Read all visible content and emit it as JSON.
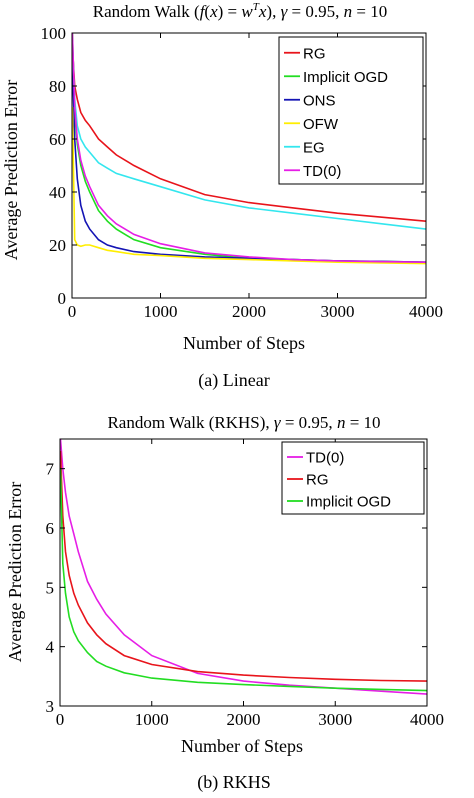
{
  "caption_a": "(a)  Linear",
  "caption_b": "(b)  RKHS",
  "chart_data": [
    {
      "type": "line",
      "title": "Random Walk (f(x) = w^T x), γ = 0.95, n = 10",
      "xlabel": "Number of Steps",
      "ylabel": "Average Prediction Error",
      "xlim": [
        0,
        4000
      ],
      "ylim": [
        0,
        100
      ],
      "xticks": [
        0,
        1000,
        2000,
        3000,
        4000
      ],
      "yticks": [
        0,
        20,
        40,
        60,
        80,
        100
      ],
      "grid": false,
      "legend_position": "top-right",
      "series": [
        {
          "name": "RG",
          "color": "#e8141b",
          "x": [
            5,
            30,
            60,
            100,
            150,
            200,
            300,
            400,
            500,
            700,
            1000,
            1500,
            2000,
            2500,
            3000,
            3500,
            4000
          ],
          "y": [
            95,
            80,
            75,
            70,
            67,
            65,
            60,
            57,
            54,
            50,
            45,
            39,
            36,
            34,
            32,
            30.5,
            29
          ]
        },
        {
          "name": "Implicit OGD",
          "color": "#22dd22",
          "x": [
            5,
            30,
            60,
            100,
            150,
            200,
            300,
            400,
            500,
            700,
            1000,
            1500,
            2000,
            2500,
            3000,
            3500,
            4000
          ],
          "y": [
            100,
            70,
            58,
            50,
            44,
            40,
            33,
            29,
            26,
            22,
            19,
            16.5,
            15,
            14.5,
            14,
            13.8,
            13.5
          ]
        },
        {
          "name": "ONS",
          "color": "#1414b4",
          "x": [
            5,
            30,
            60,
            100,
            150,
            200,
            300,
            400,
            500,
            700,
            1000,
            1500,
            2000,
            2500,
            3000,
            3500,
            4000
          ],
          "y": [
            88,
            60,
            45,
            35,
            29,
            26,
            22,
            20,
            19,
            17.5,
            16.5,
            15.5,
            15,
            14.5,
            14,
            13.8,
            13.5
          ]
        },
        {
          "name": "OFW",
          "color": "#ffee00",
          "x": [
            5,
            30,
            60,
            100,
            150,
            200,
            300,
            400,
            500,
            700,
            1000,
            1500,
            2000,
            2500,
            3000,
            3500,
            4000
          ],
          "y": [
            72,
            22,
            20,
            19.5,
            20,
            20,
            19,
            18,
            17.5,
            16.5,
            16,
            15,
            14.5,
            14,
            13.5,
            13.2,
            13
          ]
        },
        {
          "name": "EG",
          "color": "#33e6ee",
          "x": [
            5,
            30,
            60,
            100,
            150,
            200,
            300,
            400,
            500,
            700,
            1000,
            1500,
            2000,
            2500,
            3000,
            3500,
            4000
          ],
          "y": [
            97,
            75,
            65,
            60,
            57,
            55,
            51,
            49,
            47,
            45,
            42,
            37,
            34,
            32,
            30,
            28,
            26
          ]
        },
        {
          "name": "TD(0)",
          "color": "#e61ee6",
          "x": [
            5,
            30,
            60,
            100,
            150,
            200,
            300,
            400,
            500,
            700,
            1000,
            1500,
            2000,
            2500,
            3000,
            3500,
            4000
          ],
          "y": [
            100,
            72,
            60,
            52,
            46,
            42,
            35,
            31,
            28,
            24,
            20.5,
            17,
            15.5,
            14.5,
            14,
            13.7,
            13.5
          ]
        }
      ]
    },
    {
      "type": "line",
      "title": "Random Walk (RKHS), γ = 0.95, n = 10",
      "xlabel": "Number of Steps",
      "ylabel": "Average Prediction Error",
      "xlim": [
        0,
        4000
      ],
      "ylim": [
        3,
        7.5
      ],
      "xticks": [
        0,
        1000,
        2000,
        3000,
        4000
      ],
      "yticks": [
        3,
        4,
        5,
        6,
        7
      ],
      "grid": false,
      "legend_position": "top-right",
      "series": [
        {
          "name": "TD(0)",
          "color": "#e61ee6",
          "x": [
            5,
            30,
            60,
            100,
            150,
            200,
            300,
            400,
            500,
            700,
            1000,
            1500,
            2000,
            2500,
            3000,
            3500,
            4000
          ],
          "y": [
            7.5,
            7.0,
            6.6,
            6.2,
            5.9,
            5.6,
            5.1,
            4.8,
            4.55,
            4.2,
            3.85,
            3.55,
            3.42,
            3.35,
            3.3,
            3.25,
            3.2
          ]
        },
        {
          "name": "RG",
          "color": "#e8141b",
          "x": [
            5,
            30,
            60,
            100,
            150,
            200,
            300,
            400,
            500,
            700,
            1000,
            1500,
            2000,
            2500,
            3000,
            3500,
            4000
          ],
          "y": [
            7.3,
            6.2,
            5.6,
            5.2,
            4.9,
            4.7,
            4.4,
            4.2,
            4.05,
            3.85,
            3.7,
            3.58,
            3.52,
            3.48,
            3.45,
            3.43,
            3.42
          ]
        },
        {
          "name": "Implicit OGD",
          "color": "#22dd22",
          "x": [
            5,
            30,
            60,
            100,
            150,
            200,
            300,
            400,
            500,
            700,
            1000,
            1500,
            2000,
            2500,
            3000,
            3500,
            4000
          ],
          "y": [
            7.0,
            5.4,
            4.9,
            4.5,
            4.25,
            4.1,
            3.9,
            3.75,
            3.67,
            3.56,
            3.47,
            3.4,
            3.36,
            3.33,
            3.3,
            3.28,
            3.26
          ]
        }
      ]
    }
  ]
}
